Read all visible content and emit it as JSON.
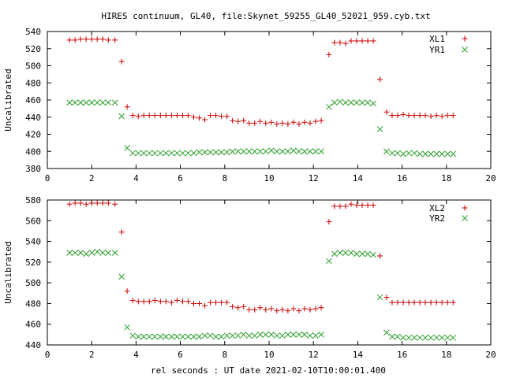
{
  "title": "HIRES continuum, GL40, file:Skynet_59255_GL40_52021_959.cyb.txt",
  "chart_data": [
    {
      "type": "scatter",
      "ylabel": "Uncalibrated",
      "xlabel": "",
      "xlim": [
        0,
        20
      ],
      "ylim": [
        380,
        540
      ],
      "x_ticks": [
        0,
        2,
        4,
        6,
        8,
        10,
        12,
        14,
        16,
        18,
        20
      ],
      "y_ticks": [
        380,
        400,
        420,
        440,
        460,
        480,
        500,
        520,
        540
      ],
      "legend": "top-right",
      "series": [
        {
          "name": "XL1",
          "marker": "plus",
          "color": "#cc0000",
          "x": [
            1.0,
            1.25,
            1.5,
            1.75,
            2.0,
            2.25,
            2.5,
            2.75,
            3.05,
            3.35,
            3.6,
            3.85,
            4.1,
            4.35,
            4.6,
            4.85,
            5.1,
            5.35,
            5.6,
            5.85,
            6.1,
            6.35,
            6.6,
            6.85,
            7.1,
            7.35,
            7.6,
            7.85,
            8.1,
            8.35,
            8.6,
            8.85,
            9.1,
            9.35,
            9.6,
            9.85,
            10.1,
            10.35,
            10.6,
            10.85,
            11.1,
            11.35,
            11.6,
            11.85,
            12.1,
            12.35,
            12.7,
            12.95,
            13.2,
            13.45,
            13.7,
            13.95,
            14.2,
            14.45,
            14.7,
            15.0,
            15.3,
            15.55,
            15.8,
            16.05,
            16.3,
            16.55,
            16.8,
            17.05,
            17.3,
            17.55,
            17.8,
            18.05,
            18.3
          ],
          "y": [
            530,
            530,
            531,
            531,
            531,
            531,
            531,
            530,
            530,
            505,
            452,
            442,
            441,
            442,
            442,
            442,
            442,
            442,
            442,
            442,
            442,
            442,
            440,
            439,
            437,
            442,
            442,
            441,
            441,
            436,
            435,
            436,
            433,
            433,
            435,
            433,
            434,
            432,
            433,
            432,
            434,
            432,
            434,
            433,
            435,
            436,
            513,
            527,
            527,
            526,
            529,
            529,
            529,
            529,
            529,
            484,
            446,
            442,
            442,
            443,
            442,
            442,
            442,
            442,
            441,
            442,
            441,
            442,
            442
          ]
        },
        {
          "name": "YR1",
          "marker": "cross",
          "color": "#2ca02c",
          "x": [
            1.0,
            1.25,
            1.5,
            1.75,
            2.0,
            2.25,
            2.5,
            2.75,
            3.05,
            3.35,
            3.6,
            3.85,
            4.1,
            4.35,
            4.6,
            4.85,
            5.1,
            5.35,
            5.6,
            5.85,
            6.1,
            6.35,
            6.6,
            6.85,
            7.1,
            7.35,
            7.6,
            7.85,
            8.1,
            8.35,
            8.6,
            8.85,
            9.1,
            9.35,
            9.6,
            9.85,
            10.1,
            10.35,
            10.6,
            10.85,
            11.1,
            11.35,
            11.6,
            11.85,
            12.1,
            12.35,
            12.7,
            12.95,
            13.2,
            13.45,
            13.7,
            13.95,
            14.2,
            14.45,
            14.7,
            15.0,
            15.3,
            15.55,
            15.8,
            16.05,
            16.3,
            16.55,
            16.8,
            17.05,
            17.3,
            17.55,
            17.8,
            18.05,
            18.3
          ],
          "y": [
            457,
            457,
            457,
            457,
            457,
            457,
            457,
            457,
            457,
            441,
            404,
            398,
            398,
            398,
            398,
            398,
            398,
            398,
            398,
            398,
            398,
            398,
            398,
            399,
            399,
            399,
            399,
            399,
            399,
            400,
            400,
            400,
            400,
            400,
            400,
            400,
            401,
            400,
            400,
            400,
            401,
            400,
            400,
            400,
            400,
            400,
            452,
            457,
            458,
            457,
            457,
            457,
            457,
            457,
            456,
            426,
            400,
            398,
            398,
            397,
            398,
            398,
            397,
            397,
            397,
            397,
            397,
            397,
            397
          ]
        }
      ]
    },
    {
      "type": "scatter",
      "ylabel": "Uncalibrated",
      "xlabel": "rel seconds : UT date 2021-02-10T10:00:01.400",
      "xlim": [
        0,
        20
      ],
      "ylim": [
        440,
        580
      ],
      "x_ticks": [
        0,
        2,
        4,
        6,
        8,
        10,
        12,
        14,
        16,
        18,
        20
      ],
      "y_ticks": [
        440,
        460,
        480,
        500,
        520,
        540,
        560,
        580
      ],
      "legend": "top-right",
      "series": [
        {
          "name": "XL2",
          "marker": "plus",
          "color": "#cc0000",
          "x": [
            1.0,
            1.25,
            1.5,
            1.75,
            2.0,
            2.25,
            2.5,
            2.75,
            3.05,
            3.35,
            3.6,
            3.85,
            4.1,
            4.35,
            4.6,
            4.85,
            5.1,
            5.35,
            5.6,
            5.85,
            6.1,
            6.35,
            6.6,
            6.85,
            7.1,
            7.35,
            7.6,
            7.85,
            8.1,
            8.35,
            8.6,
            8.85,
            9.1,
            9.35,
            9.6,
            9.85,
            10.1,
            10.35,
            10.6,
            10.85,
            11.1,
            11.35,
            11.6,
            11.85,
            12.1,
            12.35,
            12.7,
            12.95,
            13.2,
            13.45,
            13.7,
            13.95,
            14.2,
            14.45,
            14.7,
            15.0,
            15.3,
            15.55,
            15.8,
            16.05,
            16.3,
            16.55,
            16.8,
            17.05,
            17.3,
            17.55,
            17.8,
            18.05,
            18.3
          ],
          "y": [
            576,
            577,
            577,
            576,
            577,
            577,
            577,
            577,
            576,
            549,
            492,
            483,
            482,
            482,
            482,
            483,
            482,
            482,
            481,
            483,
            482,
            482,
            480,
            480,
            478,
            481,
            481,
            481,
            481,
            477,
            476,
            477,
            474,
            474,
            476,
            474,
            475,
            473,
            474,
            473,
            475,
            473,
            475,
            474,
            475,
            476,
            559,
            574,
            574,
            574,
            576,
            575,
            575,
            575,
            575,
            526,
            486,
            481,
            481,
            481,
            481,
            481,
            481,
            481,
            481,
            481,
            481,
            481,
            481
          ]
        },
        {
          "name": "YR2",
          "marker": "cross",
          "color": "#2ca02c",
          "x": [
            1.0,
            1.25,
            1.5,
            1.75,
            2.0,
            2.25,
            2.5,
            2.75,
            3.05,
            3.35,
            3.6,
            3.85,
            4.1,
            4.35,
            4.6,
            4.85,
            5.1,
            5.35,
            5.6,
            5.85,
            6.1,
            6.35,
            6.6,
            6.85,
            7.1,
            7.35,
            7.6,
            7.85,
            8.1,
            8.35,
            8.6,
            8.85,
            9.1,
            9.35,
            9.6,
            9.85,
            10.1,
            10.35,
            10.6,
            10.85,
            11.1,
            11.35,
            11.6,
            11.85,
            12.1,
            12.35,
            12.7,
            12.95,
            13.2,
            13.45,
            13.7,
            13.95,
            14.2,
            14.45,
            14.7,
            15.0,
            15.3,
            15.55,
            15.8,
            16.05,
            16.3,
            16.55,
            16.8,
            17.05,
            17.3,
            17.55,
            17.8,
            18.05,
            18.3
          ],
          "y": [
            529,
            529,
            529,
            528,
            529,
            530,
            529,
            529,
            529,
            506,
            457,
            449,
            448,
            448,
            448,
            448,
            448,
            448,
            448,
            448,
            448,
            448,
            448,
            448,
            449,
            449,
            448,
            448,
            449,
            449,
            449,
            450,
            449,
            449,
            450,
            450,
            450,
            449,
            449,
            450,
            450,
            450,
            450,
            449,
            449,
            450,
            521,
            528,
            529,
            529,
            529,
            528,
            528,
            528,
            527,
            486,
            452,
            448,
            448,
            447,
            447,
            447,
            447,
            447,
            447,
            447,
            447,
            447,
            447
          ]
        }
      ]
    }
  ]
}
